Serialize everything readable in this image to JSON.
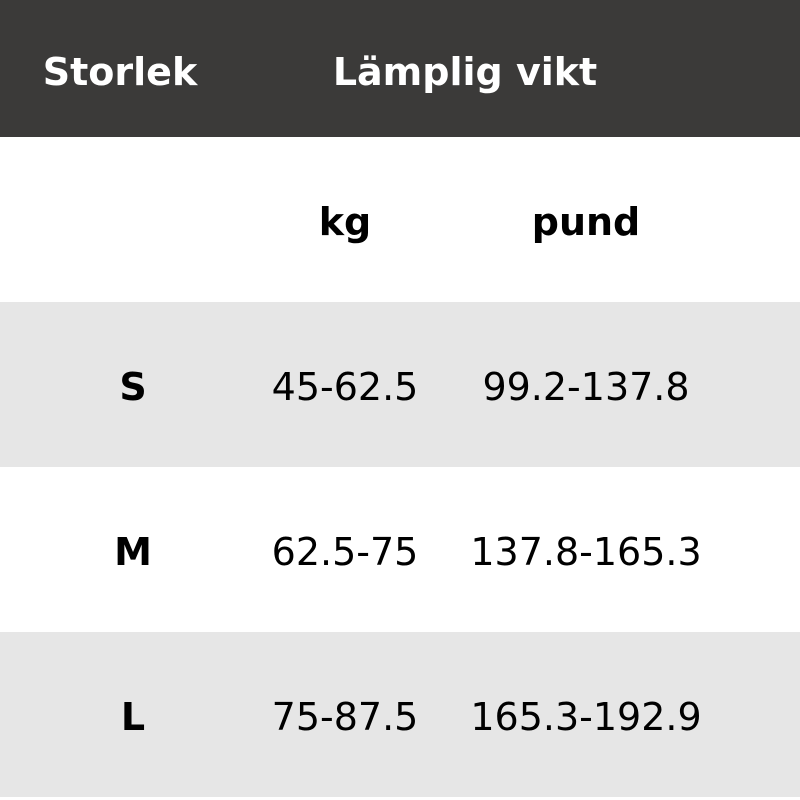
{
  "header": {
    "size_label": "Storlek",
    "weight_label": "Lämplig vikt"
  },
  "units": {
    "kg": "kg",
    "lb": "pund"
  },
  "rows": [
    {
      "size": "S",
      "kg": "45-62.5",
      "lb": "99.2-137.8"
    },
    {
      "size": "M",
      "kg": "62.5-75",
      "lb": "137.8-165.3"
    },
    {
      "size": "L",
      "kg": "75-87.5",
      "lb": "165.3-192.9"
    }
  ],
  "colors": {
    "header_bg": "#3b3a39",
    "stripe": "#e6e6e6"
  }
}
